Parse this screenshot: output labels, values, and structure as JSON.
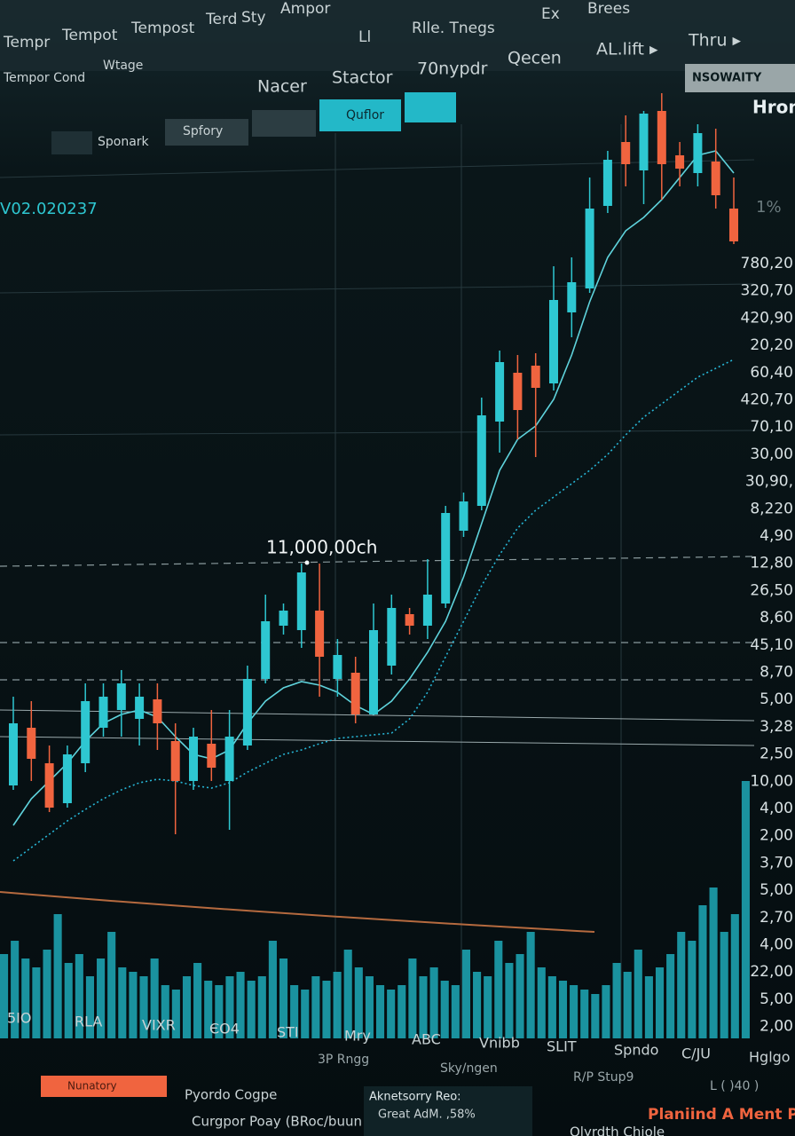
{
  "header": {
    "row1": [
      "Tempr",
      "Tempot",
      "Tempost",
      "Terd",
      "Sty",
      "Ampor",
      "Ex",
      "Brees"
    ],
    "row2": [
      "Tempor Cond",
      "Wtage",
      "Ll",
      "Rlle. Tnegs"
    ],
    "tabs": [
      "Nacer",
      "Stactor",
      "70nypdr",
      "Qecen",
      "AL.lift ▸",
      "Thru ▸"
    ],
    "buttons": [
      "Sponark",
      "Spfory",
      "Quflor"
    ],
    "badge": "NSOWAITY",
    "side_title": "Hron",
    "side_pct": "1%",
    "left_code": "V02.020237"
  },
  "chart_data": {
    "type": "candlestick",
    "annotation": "11,000,00ch",
    "ylim": [
      0,
      100
    ],
    "color_up": "#2ec7d1",
    "color_down": "#f0643f",
    "candles": [
      {
        "open": 11.5,
        "high": 21.5,
        "low": 11,
        "close": 18.5
      },
      {
        "open": 18,
        "high": 21,
        "low": 12,
        "close": 14.5
      },
      {
        "open": 14,
        "high": 16,
        "low": 8.5,
        "close": 9
      },
      {
        "open": 9.5,
        "high": 16,
        "low": 9,
        "close": 15
      },
      {
        "open": 14,
        "high": 23,
        "low": 13,
        "close": 21
      },
      {
        "open": 18,
        "high": 23,
        "low": 17,
        "close": 21.5
      },
      {
        "open": 20,
        "high": 24.5,
        "low": 17,
        "close": 23
      },
      {
        "open": 19,
        "high": 23,
        "low": 16,
        "close": 21.5
      },
      {
        "open": 21.2,
        "high": 23,
        "low": 15.5,
        "close": 18.5
      },
      {
        "open": 16.5,
        "high": 18.5,
        "low": 6,
        "close": 12
      },
      {
        "open": 12,
        "high": 18,
        "low": 11,
        "close": 17
      },
      {
        "open": 16.2,
        "high": 20,
        "low": 12,
        "close": 13.5
      },
      {
        "open": 12,
        "high": 20,
        "low": 6.5,
        "close": 17
      },
      {
        "open": 16,
        "high": 25,
        "low": 15.5,
        "close": 23.5
      },
      {
        "open": 23.5,
        "high": 33,
        "low": 23,
        "close": 30
      },
      {
        "open": 29.5,
        "high": 32,
        "low": 28.5,
        "close": 31.2
      },
      {
        "open": 29,
        "high": 36.5,
        "low": 27,
        "close": 35.5
      },
      {
        "open": 31.2,
        "high": 36.5,
        "low": 21.5,
        "close": 26
      },
      {
        "open": 23.5,
        "high": 28,
        "low": 21.5,
        "close": 26.2
      },
      {
        "open": 24.2,
        "high": 26,
        "low": 18.5,
        "close": 19.5
      },
      {
        "open": 19.5,
        "high": 32,
        "low": 19.5,
        "close": 29
      },
      {
        "open": 25,
        "high": 33,
        "low": 24,
        "close": 31.5
      },
      {
        "open": 30.8,
        "high": 31.5,
        "low": 28.5,
        "close": 29.5
      },
      {
        "open": 29.5,
        "high": 37,
        "low": 28,
        "close": 33
      },
      {
        "open": 32,
        "high": 43,
        "low": 31.5,
        "close": 42.2
      },
      {
        "open": 40.2,
        "high": 44.5,
        "low": 39.5,
        "close": 43.5
      },
      {
        "open": 43,
        "high": 55.2,
        "low": 42.5,
        "close": 53.2
      },
      {
        "open": 52.5,
        "high": 60.5,
        "low": 49,
        "close": 59.2
      },
      {
        "open": 58,
        "high": 60,
        "low": 50.5,
        "close": 53.8
      },
      {
        "open": 58.8,
        "high": 60.2,
        "low": 48.5,
        "close": 56.3
      },
      {
        "open": 56.8,
        "high": 70,
        "low": 56,
        "close": 66.2
      },
      {
        "open": 64.8,
        "high": 71,
        "low": 62,
        "close": 68.2
      },
      {
        "open": 67.5,
        "high": 80,
        "low": 67,
        "close": 76.5
      },
      {
        "open": 76.8,
        "high": 83,
        "low": 76,
        "close": 82
      },
      {
        "open": 84,
        "high": 87,
        "low": 79,
        "close": 81.5
      },
      {
        "open": 80.8,
        "high": 87.5,
        "low": 77,
        "close": 87.2
      },
      {
        "open": 87.5,
        "high": 89.5,
        "low": 77.5,
        "close": 81.5
      },
      {
        "open": 82.5,
        "high": 84,
        "low": 79,
        "close": 81
      },
      {
        "open": 80.5,
        "high": 86,
        "low": 79,
        "close": 85
      },
      {
        "open": 81.8,
        "high": 85.5,
        "low": 76.5,
        "close": 78
      },
      {
        "open": 76.5,
        "high": 80,
        "low": 72.5,
        "close": 72.8
      }
    ],
    "moving_averages": [
      {
        "color": "#5fd3dc",
        "dash": false,
        "values": [
          7,
          10,
          12,
          14,
          16.5,
          18.5,
          19.5,
          20,
          19.2,
          17,
          15,
          14.5,
          15.5,
          18.5,
          21,
          22.5,
          23.2,
          22.8,
          22,
          20.5,
          19.5,
          21,
          23.5,
          26.5,
          30,
          35,
          41,
          47,
          50.5,
          52,
          55,
          60,
          66,
          71,
          74,
          75.5,
          77.5,
          80,
          82.5,
          83,
          80.5
        ]
      },
      {
        "color": "#27b6d6",
        "dash": true,
        "values": [
          3,
          4.5,
          6,
          7.5,
          8.8,
          10,
          11,
          11.8,
          12.2,
          12,
          11.5,
          11.2,
          11.8,
          13,
          14,
          15,
          15.5,
          16.2,
          16.8,
          17,
          17.2,
          17.4,
          19,
          22,
          26,
          30,
          34,
          37.5,
          40.5,
          42.5,
          44,
          45.5,
          47,
          48.8,
          51,
          53,
          54.5,
          56,
          57.5,
          58.5,
          59.5
        ]
      }
    ],
    "volume": {
      "color": "#1fa9b8",
      "ylim": [
        0,
        300
      ],
      "values": [
        95,
        110,
        90,
        80,
        100,
        140,
        85,
        95,
        70,
        90,
        120,
        80,
        75,
        70,
        90,
        60,
        55,
        70,
        85,
        65,
        60,
        70,
        75,
        65,
        70,
        110,
        90,
        60,
        55,
        70,
        65,
        75,
        100,
        80,
        70,
        60,
        55,
        60,
        90,
        70,
        80,
        65,
        60,
        100,
        75,
        70,
        110,
        85,
        95,
        120,
        80,
        70,
        65,
        60,
        55,
        50,
        60,
        85,
        75,
        100,
        70,
        80,
        95,
        120,
        110,
        150,
        170,
        120,
        140,
        290
      ]
    },
    "price_labels": [
      "780,20",
      "320,70",
      "420,90",
      "20,20",
      "60,40",
      "420,70",
      "70,10",
      "30,00",
      "30,90,",
      "8,220",
      "4,90",
      "12,80",
      "26,50",
      "8,60",
      "45,10",
      "8,70",
      "5,00",
      "3,28",
      "2,50",
      "10,00",
      "4,00",
      "2,00",
      "3,70",
      "5,00",
      "2,70",
      "4,00",
      "22,00",
      "5,00",
      "2,00"
    ],
    "x_labels": [
      "5IO",
      "RLA",
      "VIXR",
      "ЄO4",
      "STI",
      "Mry",
      "ABC",
      "Vnibb",
      "SLIT",
      "Spndo",
      "C/JU",
      "Hglgo"
    ],
    "x_sublabels": [
      "3P Rngg",
      "Sky/ngen",
      "R/P Stup9",
      "L ( )40 )"
    ]
  },
  "footer": {
    "button": "Nunatory",
    "left1": "Pyordo Cogpe",
    "left2": "Curgpor Poay (BRoc/buun",
    "panel_title": "Aknetsorry Reo:",
    "panel_line": "Great AdM. ,58%",
    "right_title": "Planiind A Ment Pog",
    "right_line": "Olyrdth Chiole"
  }
}
